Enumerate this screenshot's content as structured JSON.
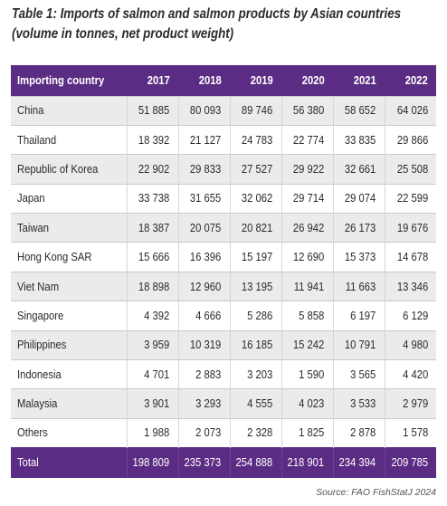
{
  "caption": {
    "line1": "Table 1: Imports of salmon and salmon products by Asian countries",
    "line2": "(volume in tonnes, net product weight)"
  },
  "table": {
    "header": [
      "Importing country",
      "2017",
      "2018",
      "2019",
      "2020",
      "2021",
      "2022"
    ],
    "rows": [
      [
        "China",
        "51 885",
        "80 093",
        "89 746",
        "56 380",
        "58 652",
        "64 026"
      ],
      [
        "Thailand",
        "18 392",
        "21 127",
        "24 783",
        "22 774",
        "33 835",
        "29 866"
      ],
      [
        "Republic of Korea",
        "22 902",
        "29 833",
        "27 527",
        "29 922",
        "32 661",
        "25 508"
      ],
      [
        "Japan",
        "33 738",
        "31 655",
        "32 062",
        "29 714",
        "29 074",
        "22 599"
      ],
      [
        "Taiwan",
        "18 387",
        "20 075",
        "20 821",
        "26 942",
        "26 173",
        "19 676"
      ],
      [
        "Hong Kong SAR",
        "15 666",
        "16 396",
        "15 197",
        "12 690",
        "15 373",
        "14 678"
      ],
      [
        "Viet Nam",
        "18 898",
        "12 960",
        "13 195",
        "11 941",
        "11 663",
        "13 346"
      ],
      [
        "Singapore",
        "4 392",
        "4 666",
        "5 286",
        "5 858",
        "6 197",
        "6 129"
      ],
      [
        "Philippines",
        "3 959",
        "10 319",
        "16 185",
        "15 242",
        "10 791",
        "4 980"
      ],
      [
        "Indonesia",
        "4 701",
        "2 883",
        "3 203",
        "1 590",
        "3 565",
        "4 420"
      ],
      [
        "Malaysia",
        "3 901",
        "3 293",
        "4 555",
        "4 023",
        "3 533",
        "2 979"
      ],
      [
        "Others",
        "1 988",
        "2 073",
        "2 328",
        "1 825",
        "2 878",
        "1 578"
      ]
    ],
    "total": [
      "Total",
      "198 809",
      "235 373",
      "254 888",
      "218 901",
      "234 394",
      "209 785"
    ]
  },
  "source": "Source: FAO FishStatJ 2024",
  "colors": {
    "header_bg": "#5b2c83",
    "row_alt_bg": "#ecebeb",
    "text": "#2a2a2a"
  }
}
